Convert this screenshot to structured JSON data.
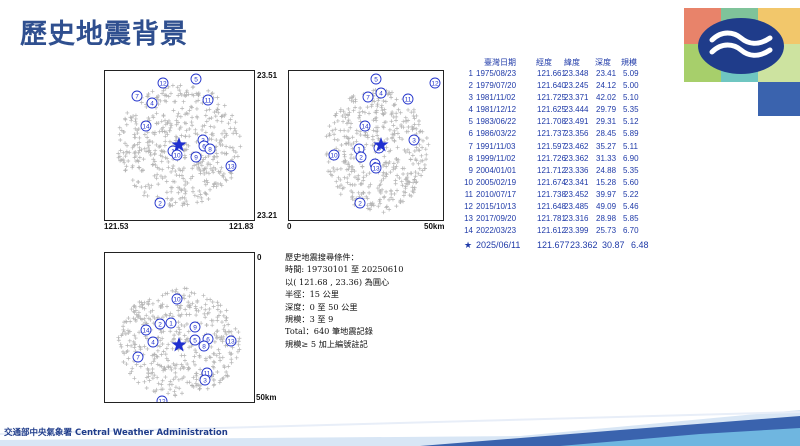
{
  "page": {
    "title": "歷史地震背景"
  },
  "brand": {
    "colors": [
      "#e8836a",
      "#7fc39a",
      "#f2c76b",
      "#a7cf6b",
      "#6fc6c1",
      "#cde3a0",
      "#3a63ae"
    ],
    "logo_icon": "cwa-wave-logo-icon"
  },
  "map_top_left": {
    "lat_top": "23.51",
    "lat_bottom": "23.21",
    "lon_left": "121.53",
    "lon_right": "121.83"
  },
  "map_top_right": {
    "depth_min": "0",
    "depth_max": "50km"
  },
  "map_bottom": {
    "depth_min": "0",
    "depth_max": "50km"
  },
  "table": {
    "headers": [
      "臺灣日期",
      "經度",
      "緯度",
      "深度",
      "規模"
    ],
    "rows": [
      {
        "no": "1",
        "date": "1975/08/23",
        "lon": "121.661",
        "lat": "23.348",
        "depth": "23.41",
        "mag": "5.09"
      },
      {
        "no": "2",
        "date": "1979/07/20",
        "lon": "121.640",
        "lat": "23.245",
        "depth": "24.12",
        "mag": "5.00"
      },
      {
        "no": "3",
        "date": "1981/11/02",
        "lon": "121.725",
        "lat": "23.371",
        "depth": "42.02",
        "mag": "5.10"
      },
      {
        "no": "4",
        "date": "1981/12/12",
        "lon": "121.625",
        "lat": "23.444",
        "depth": "29.79",
        "mag": "5.35"
      },
      {
        "no": "5",
        "date": "1983/06/22",
        "lon": "121.708",
        "lat": "23.491",
        "depth": "29.31",
        "mag": "5.12"
      },
      {
        "no": "6",
        "date": "1986/03/22",
        "lon": "121.737",
        "lat": "23.356",
        "depth": "28.45",
        "mag": "5.89"
      },
      {
        "no": "7",
        "date": "1991/11/03",
        "lon": "121.597",
        "lat": "23.462",
        "depth": "35.27",
        "mag": "5.11"
      },
      {
        "no": "8",
        "date": "1999/11/02",
        "lon": "121.726",
        "lat": "23.362",
        "depth": "31.33",
        "mag": "6.90"
      },
      {
        "no": "9",
        "date": "2004/01/01",
        "lon": "121.712",
        "lat": "23.336",
        "depth": "24.88",
        "mag": "5.35"
      },
      {
        "no": "10",
        "date": "2005/02/19",
        "lon": "121.674",
        "lat": "23.341",
        "depth": "15.28",
        "mag": "5.60"
      },
      {
        "no": "11",
        "date": "2010/07/17",
        "lon": "121.738",
        "lat": "23.452",
        "depth": "39.97",
        "mag": "5.22"
      },
      {
        "no": "12",
        "date": "2015/10/13",
        "lon": "121.648",
        "lat": "23.485",
        "depth": "49.09",
        "mag": "5.46"
      },
      {
        "no": "13",
        "date": "2017/09/20",
        "lon": "121.781",
        "lat": "23.316",
        "depth": "28.98",
        "mag": "5.85"
      },
      {
        "no": "14",
        "date": "2022/03/23",
        "lon": "121.612",
        "lat": "23.399",
        "depth": "25.73",
        "mag": "6.70"
      }
    ],
    "current": {
      "mark": "★",
      "date": "2025/06/11",
      "lon": "121.677",
      "lat": "23.362",
      "depth": "30.87",
      "mag": "6.48"
    }
  },
  "conditions": {
    "line1": "歷史地震搜尋條件：",
    "line2": "時間: 19730101 至 20250610",
    "line3": "以( 121.68 , 23.36) 為圓心",
    "line4": "半徑：15 公里",
    "line5": "深度：0 至 50 公里",
    "line6": "規模：3 至 9",
    "line7": "Total：640 筆地震記錄",
    "line8": "規模≥ 5 加上編號註記"
  },
  "footer": {
    "text": "交通部中央氣象署 Central Weather Administration"
  }
}
